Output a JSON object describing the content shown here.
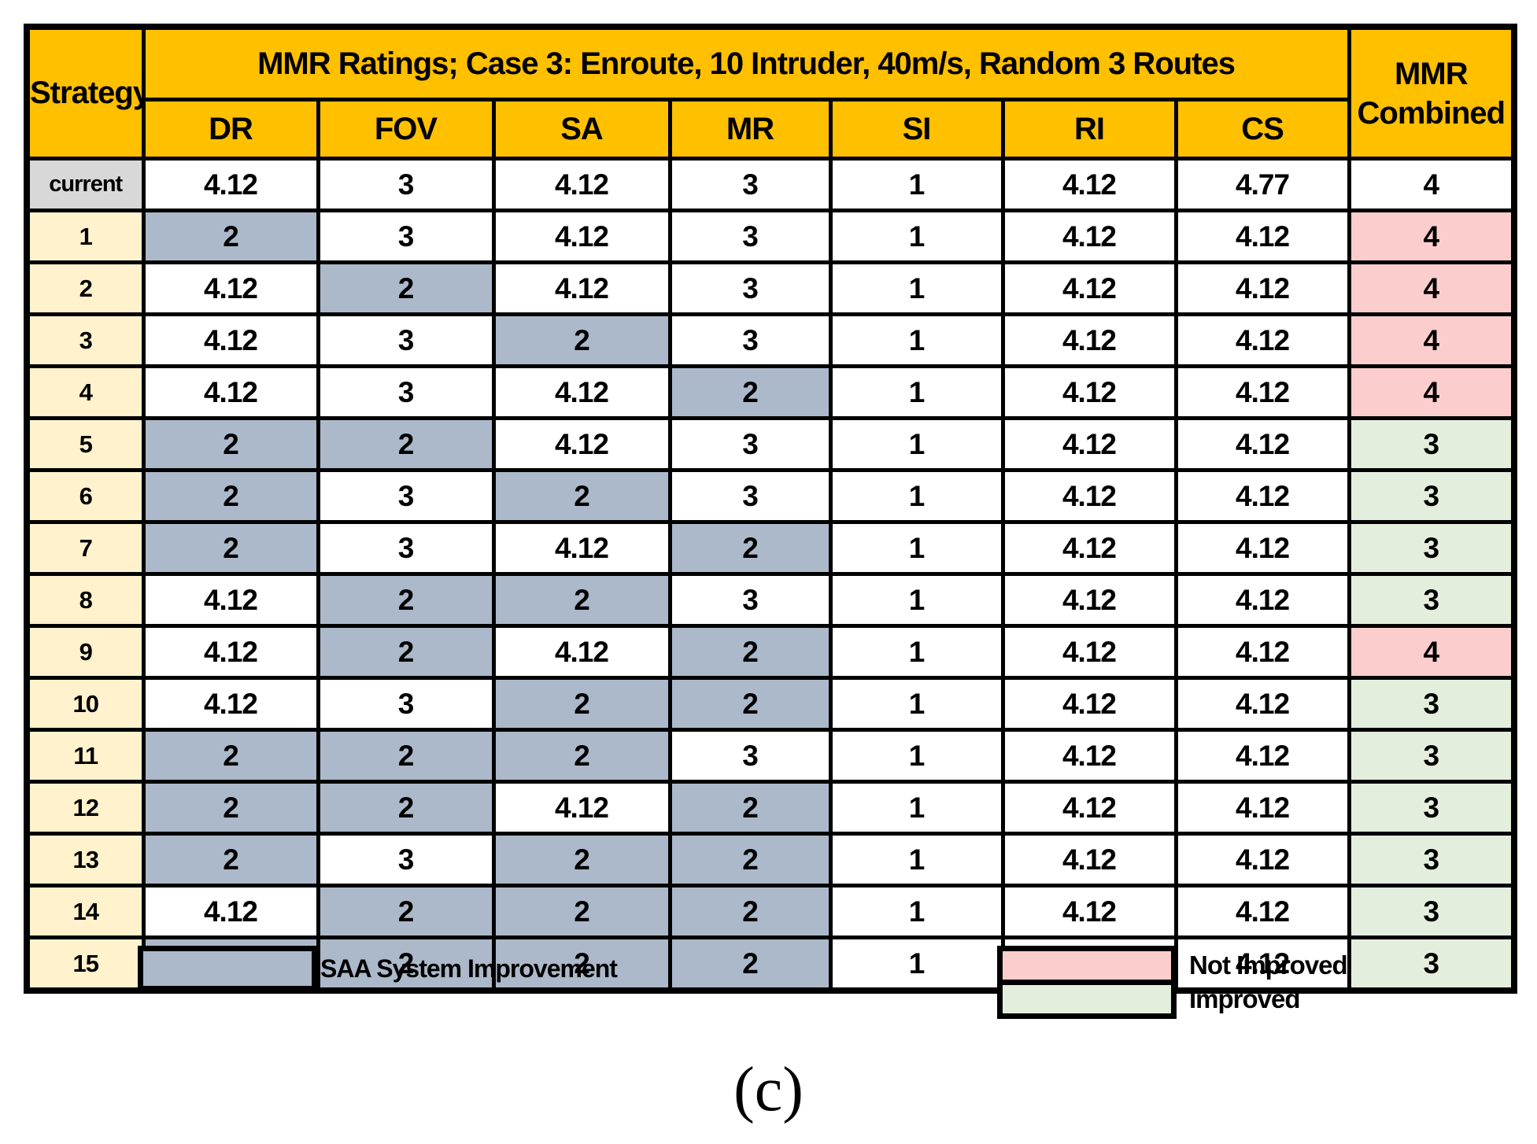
{
  "table": {
    "corner_label": "Strategy",
    "title": "MMR Ratings; Case 3:  Enroute, 10 Intruder, 40m/s, Random 3 Routes",
    "columns": [
      "DR",
      "FOV",
      "SA",
      "MR",
      "SI",
      "RI",
      "CS"
    ],
    "combined_header": {
      "line1": "MMR",
      "line2": "Combined"
    },
    "rows": [
      {
        "strategy": "current",
        "values": [
          "4.12",
          "3",
          "4.12",
          "3",
          "1",
          "4.12",
          "4.77"
        ],
        "improved": [
          false,
          false,
          false,
          false,
          false,
          false,
          false
        ],
        "combined": "4",
        "combined_status": "none"
      },
      {
        "strategy": "1",
        "values": [
          "2",
          "3",
          "4.12",
          "3",
          "1",
          "4.12",
          "4.12"
        ],
        "improved": [
          true,
          false,
          false,
          false,
          false,
          false,
          false
        ],
        "combined": "4",
        "combined_status": "not_improved"
      },
      {
        "strategy": "2",
        "values": [
          "4.12",
          "2",
          "4.12",
          "3",
          "1",
          "4.12",
          "4.12"
        ],
        "improved": [
          false,
          true,
          false,
          false,
          false,
          false,
          false
        ],
        "combined": "4",
        "combined_status": "not_improved"
      },
      {
        "strategy": "3",
        "values": [
          "4.12",
          "3",
          "2",
          "3",
          "1",
          "4.12",
          "4.12"
        ],
        "improved": [
          false,
          false,
          true,
          false,
          false,
          false,
          false
        ],
        "combined": "4",
        "combined_status": "not_improved"
      },
      {
        "strategy": "4",
        "values": [
          "4.12",
          "3",
          "4.12",
          "2",
          "1",
          "4.12",
          "4.12"
        ],
        "improved": [
          false,
          false,
          false,
          true,
          false,
          false,
          false
        ],
        "combined": "4",
        "combined_status": "not_improved"
      },
      {
        "strategy": "5",
        "values": [
          "2",
          "2",
          "4.12",
          "3",
          "1",
          "4.12",
          "4.12"
        ],
        "improved": [
          true,
          true,
          false,
          false,
          false,
          false,
          false
        ],
        "combined": "3",
        "combined_status": "improved"
      },
      {
        "strategy": "6",
        "values": [
          "2",
          "3",
          "2",
          "3",
          "1",
          "4.12",
          "4.12"
        ],
        "improved": [
          true,
          false,
          true,
          false,
          false,
          false,
          false
        ],
        "combined": "3",
        "combined_status": "improved"
      },
      {
        "strategy": "7",
        "values": [
          "2",
          "3",
          "4.12",
          "2",
          "1",
          "4.12",
          "4.12"
        ],
        "improved": [
          true,
          false,
          false,
          true,
          false,
          false,
          false
        ],
        "combined": "3",
        "combined_status": "improved"
      },
      {
        "strategy": "8",
        "values": [
          "4.12",
          "2",
          "2",
          "3",
          "1",
          "4.12",
          "4.12"
        ],
        "improved": [
          false,
          true,
          true,
          false,
          false,
          false,
          false
        ],
        "combined": "3",
        "combined_status": "improved"
      },
      {
        "strategy": "9",
        "values": [
          "4.12",
          "2",
          "4.12",
          "2",
          "1",
          "4.12",
          "4.12"
        ],
        "improved": [
          false,
          true,
          false,
          true,
          false,
          false,
          false
        ],
        "combined": "4",
        "combined_status": "not_improved"
      },
      {
        "strategy": "10",
        "values": [
          "4.12",
          "3",
          "2",
          "2",
          "1",
          "4.12",
          "4.12"
        ],
        "improved": [
          false,
          false,
          true,
          true,
          false,
          false,
          false
        ],
        "combined": "3",
        "combined_status": "improved"
      },
      {
        "strategy": "11",
        "values": [
          "2",
          "2",
          "2",
          "3",
          "1",
          "4.12",
          "4.12"
        ],
        "improved": [
          true,
          true,
          true,
          false,
          false,
          false,
          false
        ],
        "combined": "3",
        "combined_status": "improved"
      },
      {
        "strategy": "12",
        "values": [
          "2",
          "2",
          "4.12",
          "2",
          "1",
          "4.12",
          "4.12"
        ],
        "improved": [
          true,
          true,
          false,
          true,
          false,
          false,
          false
        ],
        "combined": "3",
        "combined_status": "improved"
      },
      {
        "strategy": "13",
        "values": [
          "2",
          "3",
          "2",
          "2",
          "1",
          "4.12",
          "4.12"
        ],
        "improved": [
          true,
          false,
          true,
          true,
          false,
          false,
          false
        ],
        "combined": "3",
        "combined_status": "improved"
      },
      {
        "strategy": "14",
        "values": [
          "4.12",
          "2",
          "2",
          "2",
          "1",
          "4.12",
          "4.12"
        ],
        "improved": [
          false,
          true,
          true,
          true,
          false,
          false,
          false
        ],
        "combined": "3",
        "combined_status": "improved"
      },
      {
        "strategy": "15",
        "values": [
          "2",
          "2",
          "2",
          "2",
          "1",
          "4.12",
          "4.12"
        ],
        "improved": [
          true,
          true,
          true,
          true,
          false,
          false,
          false
        ],
        "combined": "3",
        "combined_status": "improved"
      }
    ],
    "red_box_groups": [
      [
        "5",
        "8"
      ],
      [
        "10",
        "10"
      ]
    ]
  },
  "legend": {
    "saa_label": "SAA System Improvement",
    "not_improved_label": "Not Improved",
    "improved_label": "Improved"
  },
  "caption": "(c)",
  "colors": {
    "header_orange": "#FFC000",
    "saa_blue": "#ACB9CA",
    "not_improved_pink": "#FBCDCD",
    "improved_green": "#E3EFDC",
    "current_gray": "#D8D8D8",
    "strategy_cream": "#FFF2CC",
    "red_box": "#C00000"
  }
}
